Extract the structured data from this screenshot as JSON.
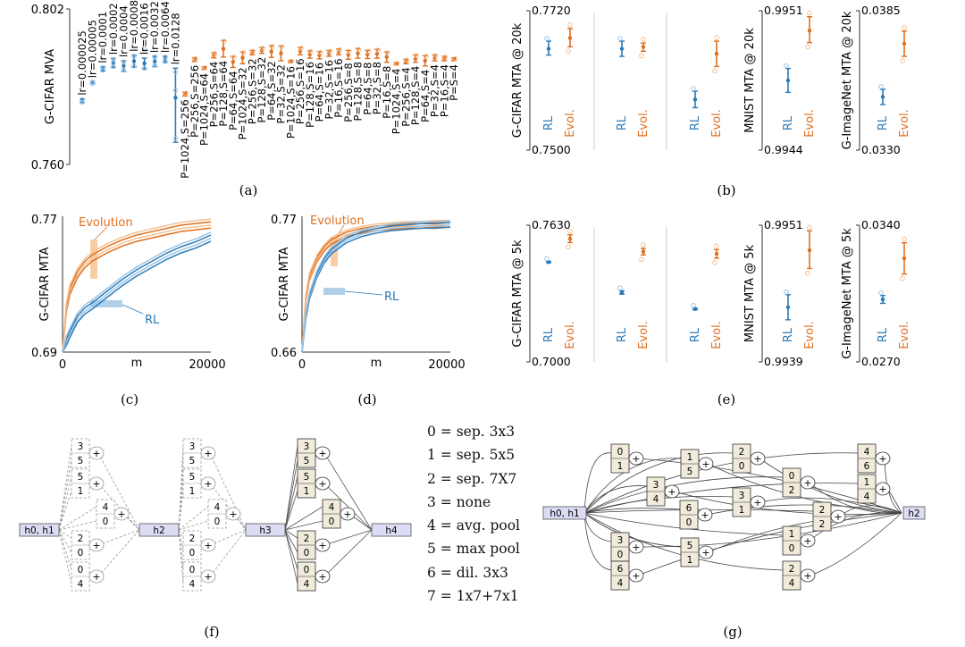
{
  "colors": {
    "rl": "#2b7ab8",
    "evo": "#df6f1f",
    "rl_light": "#9cc4e4",
    "evo_light": "#f6c08f",
    "box_fill": "#f1ebdc",
    "hidden_fill": "#dcdcf5"
  },
  "panel_captions": [
    "(a)",
    "(b)",
    "(c)",
    "(d)",
    "(e)",
    "(f)",
    "(g)"
  ],
  "chart_data": [
    {
      "id": "a",
      "type": "scatter",
      "ylabel": "G-CIFAR MVA",
      "ylim": [
        0.76,
        0.802
      ],
      "ytick_labels": [
        "0.802",
        "0.760"
      ],
      "rl_groups": [
        {
          "label": "lr=0.000025",
          "mean": 0.7772,
          "lo": 0.7767,
          "hi": 0.7777,
          "pts": [
            0.7768,
            0.7775
          ]
        },
        {
          "label": "lr=0.00005",
          "mean": 0.7821,
          "lo": 0.7818,
          "hi": 0.7824,
          "pts": [
            0.7819,
            0.7823
          ]
        },
        {
          "label": "lr=0.0001",
          "mean": 0.7858,
          "lo": 0.7852,
          "hi": 0.7864,
          "pts": [
            0.7855,
            0.7861
          ]
        },
        {
          "label": "lr=0.0002",
          "mean": 0.7874,
          "lo": 0.7862,
          "hi": 0.7887,
          "pts": [
            0.7865,
            0.7883
          ]
        },
        {
          "label": "lr=0.0004",
          "mean": 0.7866,
          "lo": 0.7851,
          "hi": 0.788,
          "pts": [
            0.7855,
            0.7877
          ]
        },
        {
          "label": "lr=0.0008",
          "mean": 0.7879,
          "lo": 0.7863,
          "hi": 0.7895,
          "pts": [
            0.7866,
            0.7892
          ]
        },
        {
          "label": "lr=0.0016",
          "mean": 0.7873,
          "lo": 0.7858,
          "hi": 0.7887,
          "pts": [
            0.786,
            0.791
          ]
        },
        {
          "label": "lr=0.0032",
          "mean": 0.7878,
          "lo": 0.7864,
          "hi": 0.7892,
          "pts": [
            0.7868,
            0.789
          ]
        },
        {
          "label": "lr=0.0064",
          "mean": 0.7884,
          "lo": 0.7876,
          "hi": 0.7892,
          "pts": [
            0.7878,
            0.789
          ]
        },
        {
          "label": "lr=0.0128",
          "mean": 0.778,
          "lo": 0.766,
          "hi": 0.786,
          "pts": [
            0.78,
            0.767,
            0.785
          ]
        }
      ],
      "evo_groups": [
        {
          "label": "P=1024,S=256",
          "mean": 0.779,
          "lo": 0.7785,
          "hi": 0.7795
        },
        {
          "label": "P=256,S=256",
          "mean": 0.7883,
          "lo": 0.7878,
          "hi": 0.7888
        },
        {
          "label": "P=1024,S=64",
          "mean": 0.786,
          "lo": 0.7856,
          "hi": 0.7864
        },
        {
          "label": "P=256,S=64",
          "mean": 0.7895,
          "lo": 0.7888,
          "hi": 0.7902
        },
        {
          "label": "P=128,S=64",
          "mean": 0.7912,
          "lo": 0.789,
          "hi": 0.7935
        },
        {
          "label": "P=64,S=64",
          "mean": 0.7877,
          "lo": 0.7862,
          "hi": 0.7892
        },
        {
          "label": "P=1024,S=32",
          "mean": 0.7888,
          "lo": 0.7872,
          "hi": 0.7904
        },
        {
          "label": "P=256,S=32",
          "mean": 0.7902,
          "lo": 0.7896,
          "hi": 0.7908
        },
        {
          "label": "P=128,S=32",
          "mean": 0.7908,
          "lo": 0.79,
          "hi": 0.7916
        },
        {
          "label": "P=64,S=32",
          "mean": 0.7905,
          "lo": 0.7889,
          "hi": 0.7921
        },
        {
          "label": "P=32,S=32",
          "mean": 0.79,
          "lo": 0.788,
          "hi": 0.792
        },
        {
          "label": "P=1024,S=16",
          "mean": 0.7878,
          "lo": 0.7875,
          "hi": 0.7881
        },
        {
          "label": "P=256,S=16",
          "mean": 0.7906,
          "lo": 0.7896,
          "hi": 0.7916
        },
        {
          "label": "P=128,S=16",
          "mean": 0.7897,
          "lo": 0.7887,
          "hi": 0.7907
        },
        {
          "label": "P=64,S=16",
          "mean": 0.7895,
          "lo": 0.7885,
          "hi": 0.7905
        },
        {
          "label": "P=32,S=16",
          "mean": 0.79,
          "lo": 0.7892,
          "hi": 0.7908
        },
        {
          "label": "P=16,S=16",
          "mean": 0.7904,
          "lo": 0.7896,
          "hi": 0.7912
        },
        {
          "label": "P=256,S=8",
          "mean": 0.7896,
          "lo": 0.7884,
          "hi": 0.7908
        },
        {
          "label": "P=128,S=8",
          "mean": 0.79,
          "lo": 0.7887,
          "hi": 0.7913
        },
        {
          "label": "P=64,S=8",
          "mean": 0.7897,
          "lo": 0.7886,
          "hi": 0.7908
        },
        {
          "label": "P=32,S=8",
          "mean": 0.7899,
          "lo": 0.7887,
          "hi": 0.7911
        },
        {
          "label": "P=16,S=8",
          "mean": 0.789,
          "lo": 0.7876,
          "hi": 0.7904
        },
        {
          "label": "P=1024,S=4",
          "mean": 0.7872,
          "lo": 0.7869,
          "hi": 0.7875
        },
        {
          "label": "P=256,S=4",
          "mean": 0.7878,
          "lo": 0.7872,
          "hi": 0.7884
        },
        {
          "label": "P=128,S=4",
          "mean": 0.7886,
          "lo": 0.7876,
          "hi": 0.7896
        },
        {
          "label": "P=64,S=4",
          "mean": 0.788,
          "lo": 0.7866,
          "hi": 0.7894
        },
        {
          "label": "P=32,S=4",
          "mean": 0.7888,
          "lo": 0.788,
          "hi": 0.7896
        },
        {
          "label": "P=16,S=4",
          "mean": 0.7886,
          "lo": 0.788,
          "hi": 0.7892
        },
        {
          "label": "P=S=4",
          "mean": 0.7884,
          "lo": 0.788,
          "hi": 0.7888
        }
      ]
    },
    {
      "id": "b",
      "type": "scatter",
      "caption": "(b)",
      "subplots": [
        {
          "ylabel": "G-CIFAR MTA @ 20k",
          "ymax_label": "0.7720",
          "ymin_label": "0.7500",
          "ylim": [
            0.75,
            0.772
          ],
          "columns": [
            {
              "rl": {
                "mean": 0.766,
                "lo": 0.765,
                "hi": 0.7672
              },
              "evo": {
                "mean": 0.7677,
                "lo": 0.7663,
                "hi": 0.7692
              }
            },
            {
              "rl": {
                "mean": 0.766,
                "lo": 0.7648,
                "hi": 0.7672
              },
              "evo": {
                "mean": 0.7663,
                "lo": 0.7656,
                "hi": 0.7669
              }
            },
            {
              "rl": {
                "mean": 0.758,
                "lo": 0.7567,
                "hi": 0.7593
              },
              "evo": {
                "mean": 0.7652,
                "lo": 0.7632,
                "hi": 0.7672
              }
            }
          ]
        },
        {
          "ylabel": "MNIST MTA @ 20k",
          "ymax_label": "0.9951",
          "ymin_label": "0.9944",
          "ylim": [
            0.9944,
            0.9951
          ],
          "columns": [
            {
              "rl": {
                "mean": 0.99475,
                "lo": 0.99469,
                "hi": 0.99481
              },
              "evo": {
                "mean": 0.995,
                "lo": 0.99494,
                "hi": 0.99507
              }
            }
          ]
        },
        {
          "ylabel": "G-ImageNet MTA @ 20k",
          "ymax_label": "0.0385",
          "ymin_label": "0.0330",
          "ylim": [
            0.033,
            0.0385
          ],
          "columns": [
            {
              "rl": {
                "mean": 0.0351,
                "lo": 0.0348,
                "hi": 0.0354
              },
              "evo": {
                "mean": 0.0372,
                "lo": 0.0367,
                "hi": 0.0377
              }
            }
          ]
        }
      ],
      "series_labels": [
        "RL",
        "Evol."
      ]
    },
    {
      "id": "c",
      "type": "line",
      "caption": "(c)",
      "xlabel": "m",
      "ylabel": "G-CIFAR MTA",
      "xlim": [
        0,
        20000
      ],
      "ylim": [
        0.69,
        0.77
      ],
      "xtick_labels": [
        "0",
        "20000"
      ],
      "ytick_labels": [
        "0.69",
        "0.77"
      ],
      "annotations": [
        "Evolution",
        "RL"
      ],
      "series": [
        {
          "name": "Evolution",
          "x": [
            0,
            500,
            1000,
            2000,
            3000,
            4000,
            6000,
            8000,
            10000,
            12000,
            14000,
            16000,
            18000,
            20000
          ],
          "y": [
            0.69,
            0.717,
            0.728,
            0.738,
            0.744,
            0.748,
            0.753,
            0.757,
            0.76,
            0.762,
            0.764,
            0.766,
            0.767,
            0.768
          ]
        },
        {
          "name": "RL",
          "x": [
            0,
            500,
            1000,
            2000,
            3000,
            4000,
            6000,
            8000,
            10000,
            12000,
            14000,
            16000,
            18000,
            20000
          ],
          "y": [
            0.69,
            0.697,
            0.702,
            0.711,
            0.716,
            0.719,
            0.726,
            0.733,
            0.739,
            0.744,
            0.749,
            0.753,
            0.756,
            0.76
          ]
        }
      ]
    },
    {
      "id": "d",
      "type": "line",
      "caption": "(d)",
      "xlabel": "m",
      "ylabel": "G-CIFAR MTA",
      "xlim": [
        0,
        20000
      ],
      "ylim": [
        0.66,
        0.77
      ],
      "xtick_labels": [
        "0",
        "20000"
      ],
      "ytick_labels": [
        "0.66",
        "0.77"
      ],
      "annotations": [
        "Evolution",
        "RL"
      ],
      "series": [
        {
          "name": "Evolution",
          "x": [
            0,
            500,
            1000,
            2000,
            3000,
            4000,
            6000,
            8000,
            10000,
            12000,
            14000,
            16000,
            18000,
            20000
          ],
          "y": [
            0.66,
            0.705,
            0.723,
            0.738,
            0.747,
            0.753,
            0.759,
            0.762,
            0.764,
            0.765,
            0.766,
            0.766,
            0.767,
            0.767
          ]
        },
        {
          "name": "RL",
          "x": [
            0,
            500,
            1000,
            2000,
            3000,
            4000,
            6000,
            8000,
            10000,
            12000,
            14000,
            16000,
            18000,
            20000
          ],
          "y": [
            0.66,
            0.69,
            0.707,
            0.725,
            0.737,
            0.745,
            0.754,
            0.759,
            0.762,
            0.764,
            0.765,
            0.766,
            0.766,
            0.767
          ]
        }
      ]
    },
    {
      "id": "e",
      "type": "scatter",
      "caption": "(e)",
      "subplots": [
        {
          "ylabel": "G-CIFAR MTA  @ 5k",
          "ymax_label": "0.7630",
          "ymin_label": "0.7000",
          "ylim": [
            0.7,
            0.763
          ],
          "columns": [
            {
              "rl": {
                "mean": 0.746,
                "lo": 0.7457,
                "hi": 0.7463
              },
              "evo": {
                "mean": 0.7568,
                "lo": 0.755,
                "hi": 0.7586
              }
            },
            {
              "rl": {
                "mean": 0.732,
                "lo": 0.7312,
                "hi": 0.7328
              },
              "evo": {
                "mean": 0.7508,
                "lo": 0.7493,
                "hi": 0.7523
              }
            },
            {
              "rl": {
                "mean": 0.7244,
                "lo": 0.724,
                "hi": 0.7248
              },
              "evo": {
                "mean": 0.7498,
                "lo": 0.7478,
                "hi": 0.7518
              }
            }
          ]
        },
        {
          "ylabel": "MNIST MTA  @ 5k",
          "ymax_label": "0.9951",
          "ymin_label": "0.9939",
          "ylim": [
            0.9939,
            0.9951
          ],
          "columns": [
            {
              "rl": {
                "mean": 0.99438,
                "lo": 0.99427,
                "hi": 0.99449
              },
              "evo": {
                "mean": 0.99488,
                "lo": 0.99472,
                "hi": 0.99505
              }
            }
          ]
        },
        {
          "ylabel": "G-ImageNet MTA @ 5k",
          "ymax_label": "0.0340",
          "ymin_label": "0.0270",
          "ylim": [
            0.027,
            0.034
          ],
          "columns": [
            {
              "rl": {
                "mean": 0.0302,
                "lo": 0.03,
                "hi": 0.0304
              },
              "evo": {
                "mean": 0.0323,
                "lo": 0.0315,
                "hi": 0.0331
              }
            }
          ]
        }
      ],
      "series_labels": [
        "RL",
        "Evol."
      ]
    }
  ],
  "ops_legend": [
    "0 = sep. 3x3",
    "1 = sep. 5x5",
    "2 = sep. 7X7",
    "3 = none",
    "4 = avg. pool",
    "5 = max pool",
    "6 = dil. 3x3",
    "7 = 1x7+7x1"
  ],
  "diagram_f": {
    "nodes": [
      "h0, h1",
      "h2",
      "h3",
      "h4"
    ],
    "blocks": [
      [
        "3",
        "5"
      ],
      [
        "5",
        "1"
      ],
      [
        "4",
        "0"
      ],
      [
        "2",
        "0"
      ],
      [
        "0",
        "4"
      ]
    ],
    "plus": "+"
  },
  "diagram_g": {
    "input": "h0, h1",
    "output": "h2",
    "plus": "+",
    "blocks": [
      [
        "0",
        "1"
      ],
      [
        "3",
        "4"
      ],
      [
        "6",
        "0"
      ],
      [
        "3",
        "0"
      ],
      [
        "6",
        "4"
      ],
      [
        "1",
        "5"
      ],
      [
        "5",
        "1"
      ],
      [
        "2",
        "0"
      ],
      [
        "3",
        "1"
      ],
      [
        "0",
        "2"
      ],
      [
        "1",
        "0"
      ],
      [
        "2",
        "4"
      ],
      [
        "2",
        "2"
      ],
      [
        "4",
        "6"
      ],
      [
        "1",
        "4"
      ]
    ]
  }
}
